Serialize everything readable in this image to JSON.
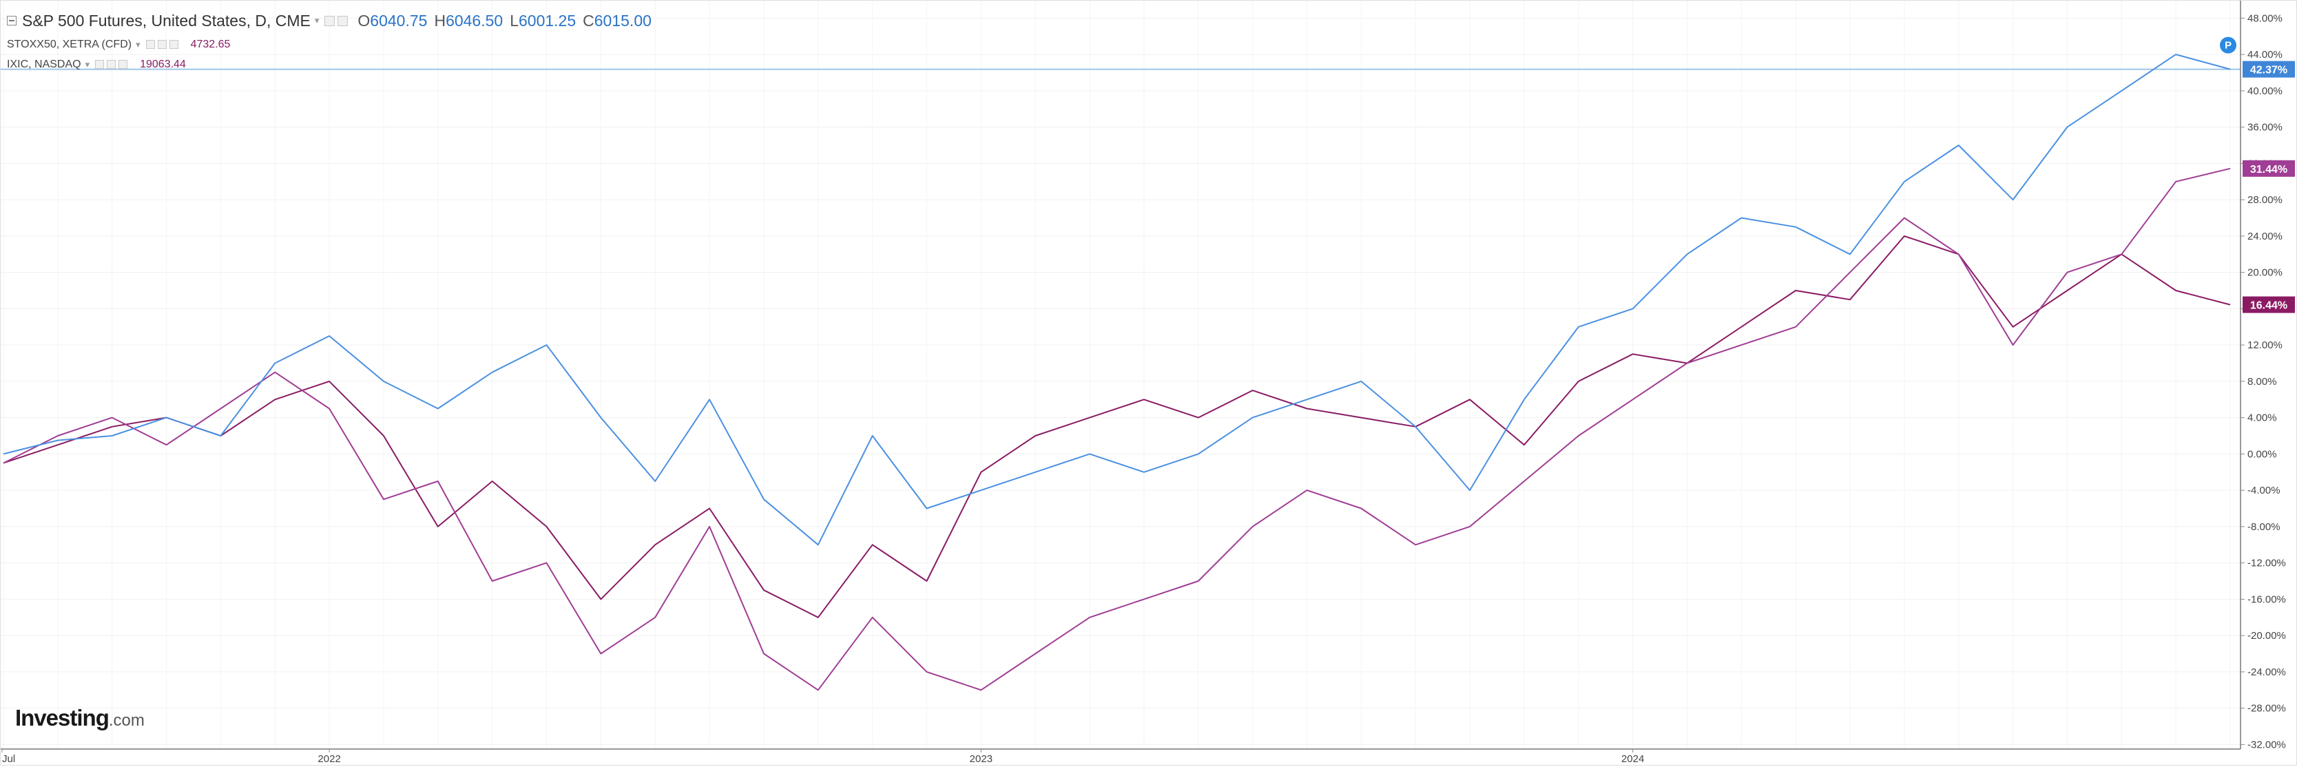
{
  "legend": {
    "main": {
      "title": "S&P 500 Futures, United States, D, CME",
      "open_key": "O",
      "open": "6040.75",
      "high_key": "H",
      "high": "6046.50",
      "low_key": "L",
      "low": "6001.25",
      "close_key": "C",
      "close": "6015.00"
    },
    "series2": {
      "name": "STOXX50, XETRA (CFD)",
      "value": "4732.65"
    },
    "series3": {
      "name": "IXIC, NASDAQ",
      "value": "19063.44"
    }
  },
  "logo": {
    "text": "Investing",
    "suffix": ".com"
  },
  "p_marker": "P",
  "colors": {
    "sp500": "#4a90e2",
    "stoxx50": "#8a1b63",
    "ixic": "#a03d94"
  },
  "chart_data": {
    "type": "line",
    "title": "",
    "xlabel": "",
    "ylabel": "",
    "x_tick_labels": [
      "Jul",
      "2022",
      "2023",
      "2024"
    ],
    "y_ticks": [
      48,
      44,
      40,
      36,
      32,
      28,
      24,
      20,
      16,
      12,
      8,
      4,
      0,
      -4,
      -8,
      -12,
      -16,
      -20,
      -24,
      -28,
      -32
    ],
    "y_tick_labels": [
      "48.00%",
      "44.00%",
      "40.00%",
      "36.00%",
      "32.00%",
      "28.00%",
      "24.00%",
      "20.00%",
      "16.00%",
      "12.00%",
      "8.00%",
      "4.00%",
      "0.00%",
      "-4.00%",
      "-8.00%",
      "-12.00%",
      "-16.00%",
      "-20.00%",
      "-24.00%",
      "-28.00%",
      "-32.00%"
    ],
    "ylim": [
      -32.5,
      50
    ],
    "x_range": [
      "2021-07",
      "2024-12"
    ],
    "grid": true,
    "legend_position": "top-left",
    "horizontal_line_value": 42.37,
    "series": [
      {
        "name": "S&P 500 Futures, United States, D, CME",
        "color": "#4a90e2",
        "last_label": "42.37%",
        "x": [
          "2021-07",
          "2021-08",
          "2021-09",
          "2021-10",
          "2021-11",
          "2021-12",
          "2022-01",
          "2022-02",
          "2022-03",
          "2022-04",
          "2022-05",
          "2022-06",
          "2022-07",
          "2022-08",
          "2022-09",
          "2022-10",
          "2022-11",
          "2022-12",
          "2023-01",
          "2023-02",
          "2023-03",
          "2023-04",
          "2023-05",
          "2023-06",
          "2023-07",
          "2023-08",
          "2023-09",
          "2023-10",
          "2023-11",
          "2023-12",
          "2024-01",
          "2024-02",
          "2024-03",
          "2024-04",
          "2024-05",
          "2024-06",
          "2024-07",
          "2024-08",
          "2024-09",
          "2024-10",
          "2024-11",
          "2024-12"
        ],
        "y": [
          0,
          1.5,
          2,
          4,
          2,
          10,
          13,
          8,
          5,
          9,
          12,
          4,
          -3,
          6,
          -5,
          -10,
          2,
          -6,
          -4,
          -2,
          0,
          -2,
          0,
          4,
          6,
          8,
          3,
          -4,
          6,
          14,
          16,
          22,
          26,
          25,
          22,
          30,
          34,
          28,
          36,
          40,
          44,
          42.37
        ]
      },
      {
        "name": "STOXX50, XETRA (CFD)",
        "color": "#8a1b63",
        "last_label": "16.44%",
        "x": [
          "2021-07",
          "2021-08",
          "2021-09",
          "2021-10",
          "2021-11",
          "2021-12",
          "2022-01",
          "2022-02",
          "2022-03",
          "2022-04",
          "2022-05",
          "2022-06",
          "2022-07",
          "2022-08",
          "2022-09",
          "2022-10",
          "2022-11",
          "2022-12",
          "2023-01",
          "2023-02",
          "2023-03",
          "2023-04",
          "2023-05",
          "2023-06",
          "2023-07",
          "2023-08",
          "2023-09",
          "2023-10",
          "2023-11",
          "2023-12",
          "2024-01",
          "2024-02",
          "2024-03",
          "2024-04",
          "2024-05",
          "2024-06",
          "2024-07",
          "2024-08",
          "2024-09",
          "2024-10",
          "2024-11",
          "2024-12"
        ],
        "y": [
          -1,
          1,
          3,
          4,
          2,
          6,
          8,
          2,
          -8,
          -3,
          -8,
          -16,
          -10,
          -6,
          -15,
          -18,
          -10,
          -14,
          -2,
          2,
          4,
          6,
          4,
          7,
          5,
          4,
          3,
          6,
          1,
          8,
          11,
          10,
          14,
          18,
          17,
          24,
          22,
          14,
          18,
          22,
          18,
          16.44
        ]
      },
      {
        "name": "IXIC, NASDAQ",
        "color": "#a03d94",
        "last_label": "31.44%",
        "x": [
          "2021-07",
          "2021-08",
          "2021-09",
          "2021-10",
          "2021-11",
          "2021-12",
          "2022-01",
          "2022-02",
          "2022-03",
          "2022-04",
          "2022-05",
          "2022-06",
          "2022-07",
          "2022-08",
          "2022-09",
          "2022-10",
          "2022-11",
          "2022-12",
          "2023-01",
          "2023-02",
          "2023-03",
          "2023-04",
          "2023-05",
          "2023-06",
          "2023-07",
          "2023-08",
          "2023-09",
          "2023-10",
          "2023-11",
          "2023-12",
          "2024-01",
          "2024-02",
          "2024-03",
          "2024-04",
          "2024-05",
          "2024-06",
          "2024-07",
          "2024-08",
          "2024-09",
          "2024-10",
          "2024-11",
          "2024-12"
        ],
        "y": [
          -1,
          2,
          4,
          1,
          5,
          9,
          5,
          -5,
          -3,
          -14,
          -12,
          -22,
          -18,
          -8,
          -22,
          -26,
          -18,
          -24,
          -26,
          -22,
          -18,
          -16,
          -14,
          -8,
          -4,
          -6,
          -10,
          -8,
          -3,
          2,
          6,
          10,
          12,
          14,
          20,
          26,
          22,
          12,
          20,
          22,
          30,
          31.44
        ]
      }
    ]
  }
}
